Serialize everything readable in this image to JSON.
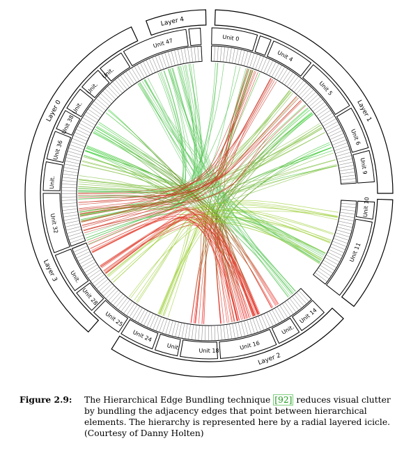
{
  "figure": {
    "layers": [
      {
        "label": "Layer 0",
        "angle": -62
      },
      {
        "label": "Layer 1",
        "angle": 62
      },
      {
        "label": "Layer 2",
        "angle": 160
      },
      {
        "label": "Layer 3",
        "angle": -116
      },
      {
        "label": "Layer 4",
        "angle": -12
      }
    ],
    "units": [
      {
        "label": "Unit 0",
        "angle": 8
      },
      {
        "label": "Unit 4",
        "angle": 29
      },
      {
        "label": "Unit 5",
        "angle": 48
      },
      {
        "label": "Unit 6",
        "angle": 69
      },
      {
        "label": "Unit 9",
        "angle": 80
      },
      {
        "label": "Unit 10",
        "angle": 95
      },
      {
        "label": "Unit 11",
        "angle": 112
      },
      {
        "label": "Unit 14",
        "angle": 141
      },
      {
        "label": "Unit 16",
        "angle": 165
      },
      {
        "label": "Unit 18",
        "angle": 180
      },
      {
        "label": "Unit 24",
        "angle": 205
      },
      {
        "label": "Unit 25",
        "angle": 217
      },
      {
        "label": "Unit 28",
        "angle": 229
      },
      {
        "label": "Unit 32",
        "angle": 259
      },
      {
        "label": "Unit 36",
        "angle": 286
      },
      {
        "label": "Unit 38",
        "angle": 296
      },
      {
        "label": "Unit 47",
        "angle": 343
      },
      {
        "label": "Unit.",
        "angle": 238
      },
      {
        "label": "Unit.",
        "angle": 274
      },
      {
        "label": "Unit.",
        "angle": 303
      },
      {
        "label": "Unit.",
        "angle": 312
      },
      {
        "label": "Unit.",
        "angle": 320
      },
      {
        "label": "Unit.",
        "angle": 150
      },
      {
        "label": "Unit.",
        "angle": 193
      }
    ],
    "colors": {
      "source": "#22cc22",
      "target": "#ee1111",
      "ring": "#000000"
    }
  },
  "caption": {
    "label": "Figure 2.9:",
    "before_ref": "The Hierarchical Edge Bundling technique ",
    "ref": "[92]",
    "after_ref": " reduces visual clutter by bundling the adjacency edges that point between hierarchical elements. The hierarchy is represented here by a radial layered icicle. (Courtesy of Danny Holten)"
  }
}
